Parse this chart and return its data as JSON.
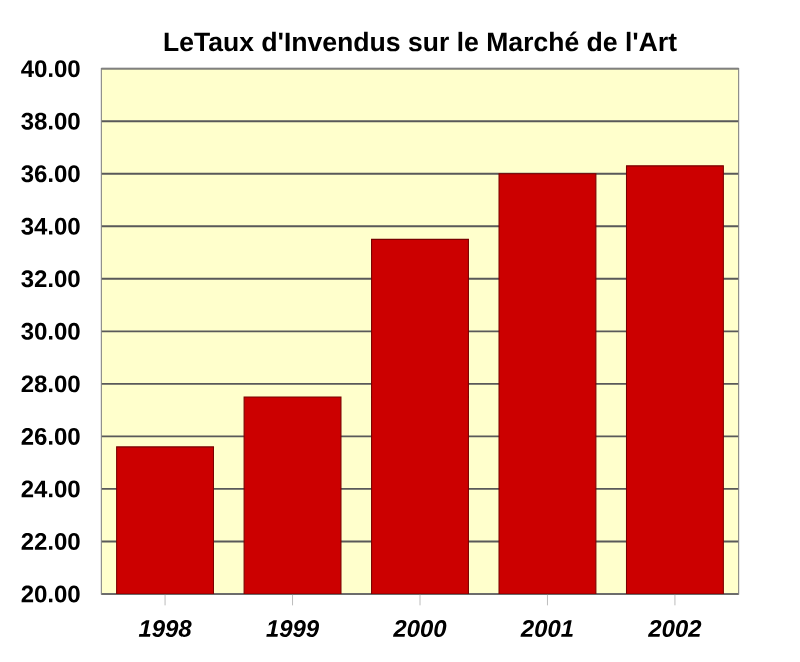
{
  "chart_data": {
    "type": "bar",
    "title": "LeTaux d'Invendus sur le Marché de l'Art",
    "categories": [
      "1998",
      "1999",
      "2000",
      "2001",
      "2002"
    ],
    "values": [
      25.6,
      27.5,
      33.5,
      36.0,
      36.3
    ],
    "color": "#cc0000",
    "ylim": [
      20,
      40
    ],
    "yticks": [
      {
        "value": 20,
        "label": "20.00"
      },
      {
        "value": 22,
        "label": "22.00"
      },
      {
        "value": 24,
        "label": "24.00"
      },
      {
        "value": 26,
        "label": "26.00"
      },
      {
        "value": 28,
        "label": "28.00"
      },
      {
        "value": 30,
        "label": "30.00"
      },
      {
        "value": 32,
        "label": "32.00"
      },
      {
        "value": 34,
        "label": "34.00"
      },
      {
        "value": 36,
        "label": "36.00"
      },
      {
        "value": 38,
        "label": "38.00"
      },
      {
        "value": 40,
        "label": "40.00"
      }
    ],
    "grid": "y"
  }
}
